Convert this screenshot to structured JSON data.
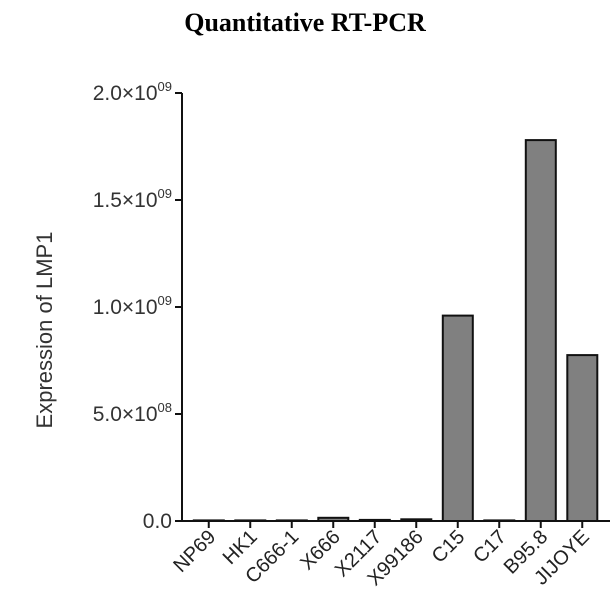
{
  "chart_data": {
    "type": "bar",
    "title": "Quantitative RT-PCR",
    "xlabel": "",
    "ylabel": "Expression of LMP1",
    "categories": [
      "NP69",
      "HK1",
      "C666-1",
      "X666",
      "X2117",
      "X99186",
      "C15",
      "C17",
      "B95.8",
      "JIJOYE"
    ],
    "values": [
      0,
      0,
      0,
      15000000,
      5000000,
      8000000,
      960000000,
      0,
      1780000000,
      775000000
    ],
    "ylim": [
      0,
      2000000000
    ],
    "yticks": [
      {
        "value": 0,
        "mantissa": "0.0",
        "exp": ""
      },
      {
        "value": 500000000,
        "mantissa": "5.0×10",
        "exp": "08"
      },
      {
        "value": 1000000000,
        "mantissa": "1.0×10",
        "exp": "09"
      },
      {
        "value": 1500000000,
        "mantissa": "1.5×10",
        "exp": "09"
      },
      {
        "value": 2000000000,
        "mantissa": "2.0×10",
        "exp": "09"
      }
    ],
    "grid": false,
    "bar_color": "#808080",
    "edge_color": "#111111"
  }
}
